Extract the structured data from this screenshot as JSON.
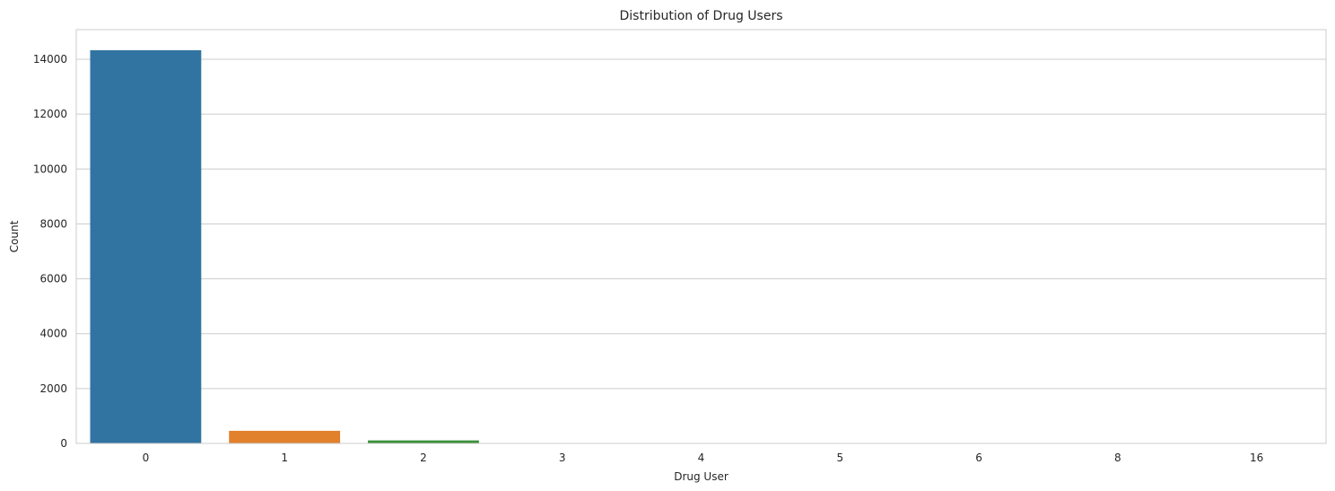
{
  "chart_data": {
    "type": "bar",
    "title": "Distribution of Drug Users",
    "xlabel": "Drug User",
    "ylabel": "Count",
    "categories": [
      "0",
      "1",
      "2",
      "3",
      "4",
      "5",
      "6",
      "8",
      "16"
    ],
    "values": [
      14330,
      460,
      110,
      14,
      6,
      4,
      2,
      1,
      1
    ],
    "colors": [
      "#3274a1",
      "#e1812c",
      "#3a923a",
      "#c03d3e",
      "#9372b2",
      "#845b53",
      "#d684bd",
      "#7f7f7f",
      "#a9aa35"
    ],
    "ylim": [
      0,
      15080
    ],
    "yticks": [
      0,
      2000,
      4000,
      6000,
      8000,
      10000,
      12000,
      14000
    ],
    "grid": "horizontal",
    "style": {
      "grid_color": "#cccccc",
      "spine_color": "#cccccc",
      "text_color": "#262626"
    }
  }
}
